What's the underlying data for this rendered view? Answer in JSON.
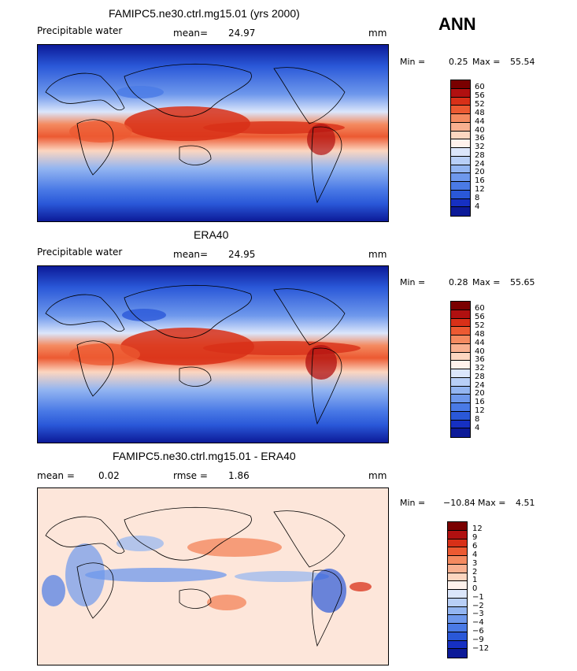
{
  "season": "ANN",
  "panels": [
    {
      "id": "model",
      "title": "FAMIPC5.ne30.ctrl.mg15.01 (yrs 2000)",
      "left_label": "Precipitable water",
      "stat_label": "mean=",
      "stat_value": "24.97",
      "units": "mm",
      "min_label": "Min =",
      "min_value": "0.25",
      "max_label": "Max =",
      "max_value": "55.54",
      "colorbar": {
        "labels": [
          "60",
          "56",
          "52",
          "48",
          "44",
          "40",
          "36",
          "32",
          "28",
          "24",
          "20",
          "16",
          "12",
          "8",
          "4"
        ],
        "colors": [
          "#7a0000",
          "#b01010",
          "#d83018",
          "#ec5a32",
          "#f48a60",
          "#f8b090",
          "#fcd6c0",
          "#fff2ec",
          "#dbe6fb",
          "#b8cff7",
          "#93b5f1",
          "#6e98ec",
          "#4a7ae6",
          "#2a58d8",
          "#1630c2",
          "#0c1a98"
        ]
      }
    },
    {
      "id": "obs",
      "title": "ERA40",
      "left_label": "Precipitable water",
      "stat_label": "mean=",
      "stat_value": "24.95",
      "units": "mm",
      "min_label": "Min =",
      "min_value": "0.28",
      "max_label": "Max =",
      "max_value": "55.65",
      "colorbar": {
        "labels": [
          "60",
          "56",
          "52",
          "48",
          "44",
          "40",
          "36",
          "32",
          "28",
          "24",
          "20",
          "16",
          "12",
          "8",
          "4"
        ],
        "colors": [
          "#7a0000",
          "#b01010",
          "#d83018",
          "#ec5a32",
          "#f48a60",
          "#f8b090",
          "#fcd6c0",
          "#fff2ec",
          "#dbe6fb",
          "#b8cff7",
          "#93b5f1",
          "#6e98ec",
          "#4a7ae6",
          "#2a58d8",
          "#1630c2",
          "#0c1a98"
        ]
      }
    },
    {
      "id": "diff",
      "title": "FAMIPC5.ne30.ctrl.mg15.01 - ERA40",
      "left_label": "mean =",
      "left_value": "0.02",
      "stat_label": "rmse =",
      "stat_value": "1.86",
      "units": "mm",
      "min_label": "Min =",
      "min_value": "−10.84",
      "max_label": "Max =",
      "max_value": "4.51",
      "colorbar": {
        "labels": [
          "12",
          "9",
          "6",
          "4",
          "3",
          "2",
          "1",
          "0",
          "−1",
          "−2",
          "−3",
          "−4",
          "−6",
          "−9",
          "−12"
        ],
        "colors": [
          "#7a0000",
          "#b01010",
          "#d83018",
          "#ec5a32",
          "#f48a60",
          "#f8b090",
          "#fcd6c0",
          "#fff2ec",
          "#dbe6fb",
          "#b8cff7",
          "#93b5f1",
          "#6e98ec",
          "#4a7ae6",
          "#2a58d8",
          "#1630c2",
          "#0c1a98"
        ]
      }
    }
  ]
}
